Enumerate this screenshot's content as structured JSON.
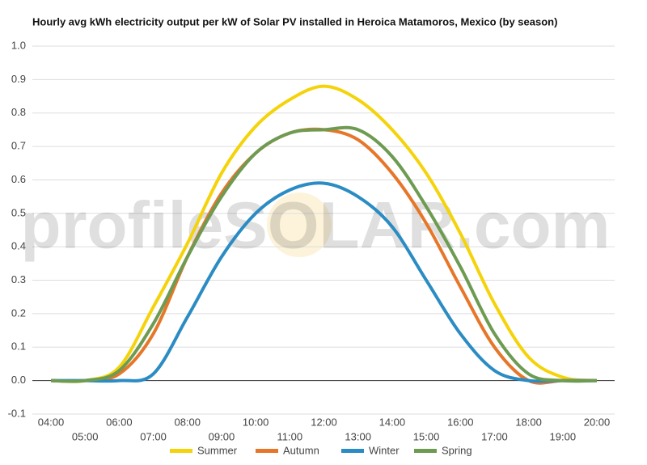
{
  "chart_data": {
    "type": "line",
    "title": "Hourly avg kWh electricity output per kW of Solar PV installed in Heroica Matamoros, Mexico (by season)",
    "watermark": "profileSOLAR.com",
    "categories": [
      "04:00",
      "05:00",
      "06:00",
      "07:00",
      "08:00",
      "09:00",
      "10:00",
      "11:00",
      "12:00",
      "13:00",
      "14:00",
      "15:00",
      "16:00",
      "17:00",
      "18:00",
      "19:00",
      "20:00"
    ],
    "series": [
      {
        "name": "Summer",
        "color": "#f5d30a",
        "values": [
          0,
          0,
          0.04,
          0.22,
          0.41,
          0.62,
          0.76,
          0.84,
          0.88,
          0.84,
          0.75,
          0.62,
          0.44,
          0.23,
          0.07,
          0.01,
          0
        ]
      },
      {
        "name": "Autumn",
        "color": "#e6772a",
        "values": [
          0,
          0,
          0.02,
          0.14,
          0.37,
          0.56,
          0.68,
          0.74,
          0.75,
          0.72,
          0.62,
          0.47,
          0.28,
          0.1,
          0,
          0,
          0
        ]
      },
      {
        "name": "Winter",
        "color": "#2b8cc4",
        "values": [
          0,
          0,
          0,
          0.02,
          0.19,
          0.37,
          0.5,
          0.57,
          0.59,
          0.55,
          0.46,
          0.3,
          0.14,
          0.03,
          0,
          0,
          0
        ]
      },
      {
        "name": "Spring",
        "color": "#6e9b52",
        "values": [
          0,
          0,
          0.03,
          0.17,
          0.37,
          0.55,
          0.68,
          0.74,
          0.75,
          0.75,
          0.67,
          0.52,
          0.34,
          0.14,
          0.02,
          0,
          0
        ]
      }
    ],
    "ylim": [
      -0.1,
      1
    ],
    "yticks": [
      -0.1,
      {
        "value": 0,
        "label": "0.0"
      },
      0.1,
      0.2,
      0.3,
      0.4,
      0.5,
      0.6,
      0.7,
      0.8,
      0.9,
      {
        "value": 1,
        "label": "1.0"
      }
    ],
    "grid": true
  }
}
